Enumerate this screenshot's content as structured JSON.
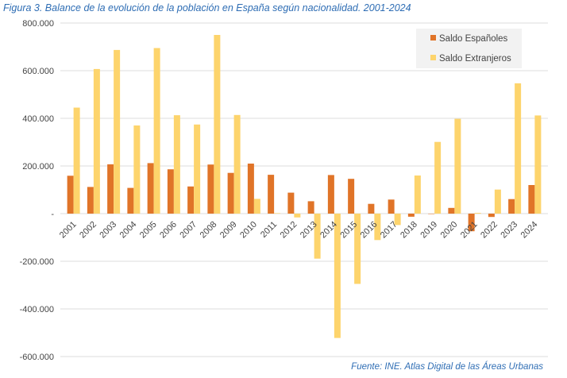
{
  "chart_data": {
    "type": "bar",
    "title": "Figura 3. Balance de la evolución de la población en España según nacionalidad. 2001-2024",
    "source": "Fuente: INE. Atlas Digital de las Áreas Urbanas",
    "categories": [
      "2001",
      "2002",
      "2003",
      "2004",
      "2005",
      "2006",
      "2007",
      "2008",
      "2009",
      "2010",
      "2011",
      "2012",
      "2013",
      "2014",
      "2015",
      "2016",
      "2017",
      "2018",
      "2019",
      "2020",
      "2021",
      "2022",
      "2023",
      "2024"
    ],
    "series": [
      {
        "name": "Saldo Españoles",
        "color": "#e07428",
        "values": [
          159000,
          112000,
          207000,
          108000,
          212000,
          186000,
          114000,
          206000,
          171000,
          210000,
          163000,
          88000,
          52000,
          162000,
          146000,
          41000,
          59000,
          -13000,
          0,
          24000,
          -74000,
          -14000,
          61000,
          120000
        ]
      },
      {
        "name": "Saldo Extranjeros",
        "color": "#fdd46c",
        "values": [
          445000,
          607000,
          687000,
          370000,
          695000,
          413000,
          374000,
          750000,
          414000,
          62000,
          2000,
          -16000,
          -189000,
          -522000,
          -295000,
          -111000,
          -48000,
          160000,
          301000,
          398000,
          3000,
          101000,
          547000,
          412000
        ]
      }
    ],
    "ylim": [
      -600000,
      800000
    ],
    "yticks": [
      800000,
      600000,
      400000,
      200000,
      0,
      -200000,
      -400000,
      -600000
    ],
    "ytick_labels": [
      "800.000",
      "600.000",
      "400.000",
      "200.000",
      "-",
      "-200.000",
      "-400.000",
      "-600.000"
    ],
    "grid": true,
    "legend_position": "top-right"
  }
}
